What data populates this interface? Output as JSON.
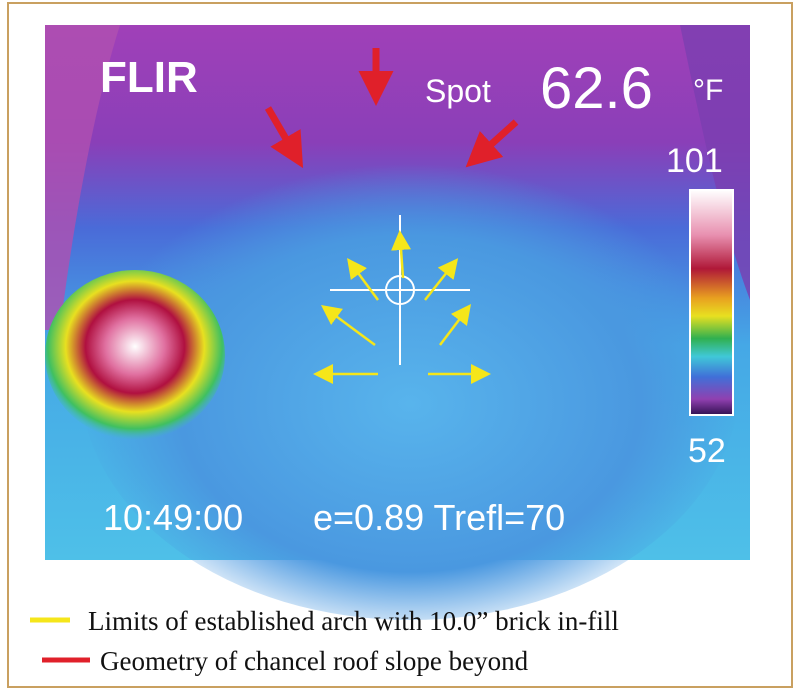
{
  "image": {
    "brand": "FLIR",
    "spot_label": "Spot",
    "spot_value": "62.6",
    "unit": "°F",
    "scale_max": "101",
    "scale_min": "52",
    "time": "10:49:00",
    "parameters": "e=0.89 Trefl=70"
  },
  "legend": [
    {
      "label": "Limits of established arch with 10.0” brick in-fill",
      "color": "#f5e61a"
    },
    {
      "label": "Geometry of chancel roof slope beyond",
      "color": "#e0202a"
    }
  ]
}
